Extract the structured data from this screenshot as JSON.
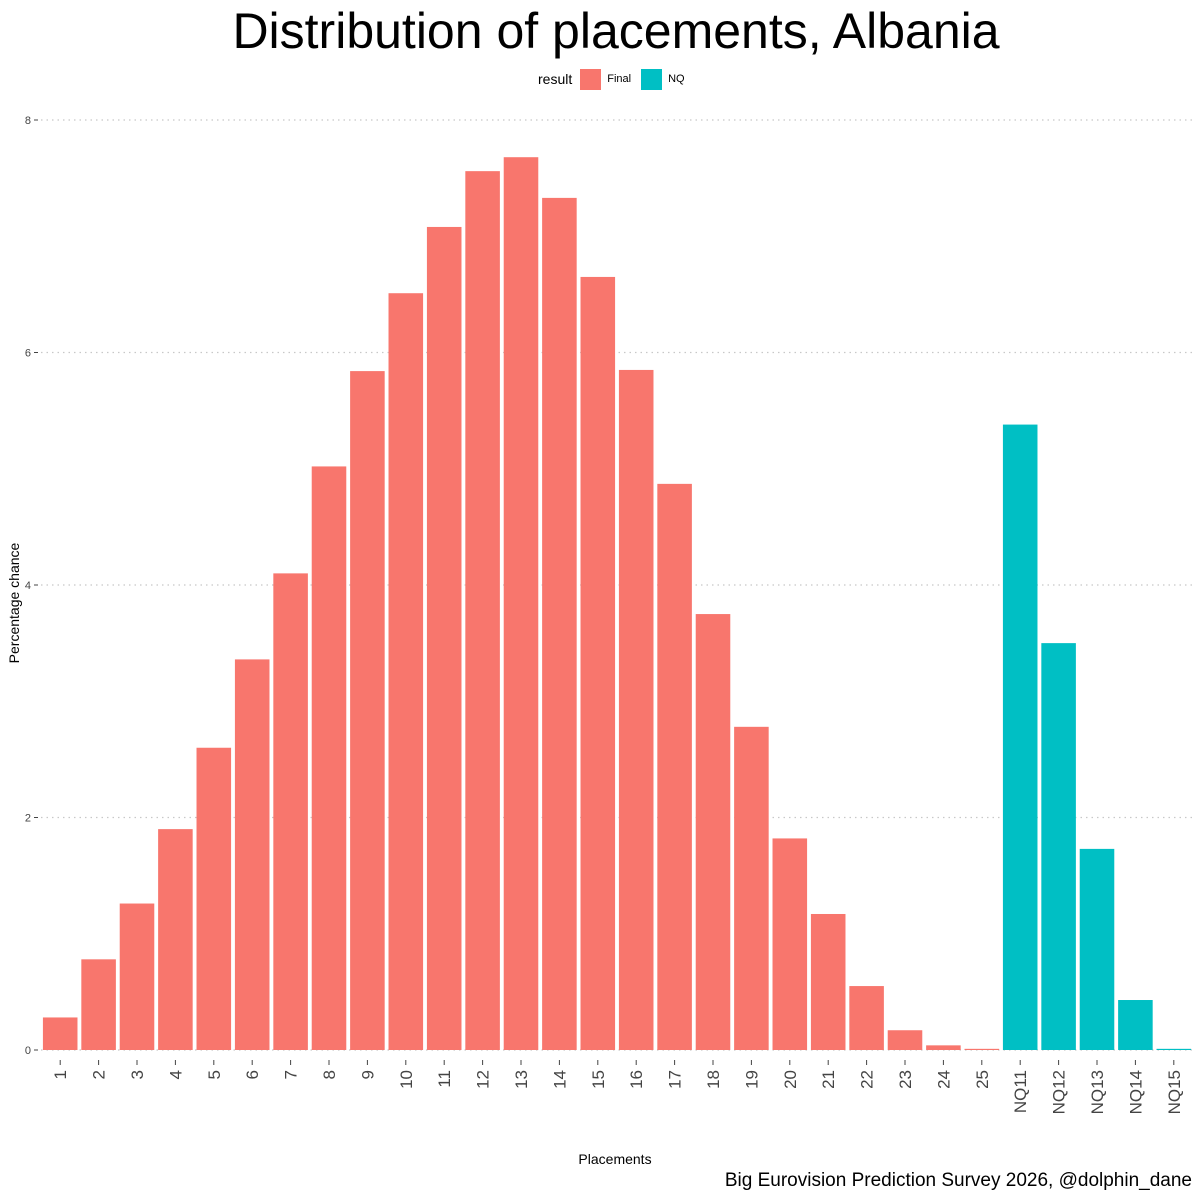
{
  "chart_data": {
    "type": "bar",
    "title": "Distribution of placements, Albania",
    "xlabel": "Placements",
    "ylabel": "Percentage chance",
    "caption": "Big Eurovision Prediction Survey 2026, @dolphin_dane",
    "legend": {
      "title": "result",
      "position": "top",
      "entries": [
        {
          "label": "Final",
          "color": "#F8766D"
        },
        {
          "label": "NQ",
          "color": "#00BFC4"
        }
      ]
    },
    "ylim": [
      0,
      8
    ],
    "yticks": [
      "0",
      "2",
      "4",
      "6",
      "8"
    ],
    "grid": "horizontal dotted",
    "categories": [
      "1",
      "2",
      "3",
      "4",
      "5",
      "6",
      "7",
      "8",
      "9",
      "10",
      "11",
      "12",
      "13",
      "14",
      "15",
      "16",
      "17",
      "18",
      "19",
      "20",
      "21",
      "22",
      "23",
      "24",
      "25",
      "NQ11",
      "NQ12",
      "NQ13",
      "NQ14",
      "NQ15"
    ],
    "values": [
      0.28,
      0.78,
      1.26,
      1.9,
      2.6,
      3.36,
      4.1,
      5.02,
      5.84,
      6.51,
      7.08,
      7.56,
      7.68,
      7.33,
      6.65,
      5.85,
      4.87,
      3.75,
      2.78,
      1.82,
      1.17,
      0.55,
      0.17,
      0.04,
      0.01,
      5.38,
      3.5,
      1.73,
      0.43,
      0.01
    ],
    "groups": [
      "Final",
      "Final",
      "Final",
      "Final",
      "Final",
      "Final",
      "Final",
      "Final",
      "Final",
      "Final",
      "Final",
      "Final",
      "Final",
      "Final",
      "Final",
      "Final",
      "Final",
      "Final",
      "Final",
      "Final",
      "Final",
      "Final",
      "Final",
      "Final",
      "Final",
      "NQ",
      "NQ",
      "NQ",
      "NQ",
      "NQ"
    ]
  }
}
